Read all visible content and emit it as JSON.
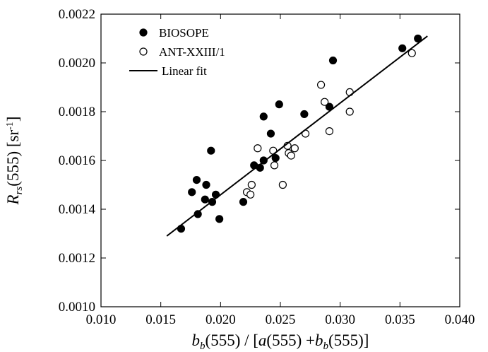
{
  "chart_data": {
    "type": "scatter",
    "xlabel": [
      "b",
      "b",
      "(555) / [",
      "a",
      "(555) +",
      "b",
      "b",
      "(555)]"
    ],
    "ylabel": [
      "R",
      "rs",
      "(555)  [sr",
      "-1",
      "]"
    ],
    "xlim": [
      0.01,
      0.04
    ],
    "ylim": [
      0.001,
      0.0022
    ],
    "xticks": [
      {
        "value": 0.01,
        "label": "0.010"
      },
      {
        "value": 0.015,
        "label": "0.015"
      },
      {
        "value": 0.02,
        "label": "0.020"
      },
      {
        "value": 0.025,
        "label": "0.025"
      },
      {
        "value": 0.03,
        "label": "0.030"
      },
      {
        "value": 0.035,
        "label": "0.035"
      },
      {
        "value": 0.04,
        "label": "0.040"
      }
    ],
    "yticks": [
      {
        "value": 0.001,
        "label": "0.0010"
      },
      {
        "value": 0.0012,
        "label": "0.0012"
      },
      {
        "value": 0.0014,
        "label": "0.0014"
      },
      {
        "value": 0.0016,
        "label": "0.0016"
      },
      {
        "value": 0.0018,
        "label": "0.0018"
      },
      {
        "value": 0.002,
        "label": "0.0020"
      },
      {
        "value": 0.0022,
        "label": "0.0022"
      }
    ],
    "legend": "top-left",
    "series": [
      {
        "name": "BIOSOPE",
        "color": "#000000",
        "style": "filled",
        "x": [
          0.0167,
          0.0176,
          0.018,
          0.0181,
          0.0188,
          0.0187,
          0.0192,
          0.0193,
          0.0196,
          0.0199,
          0.0219,
          0.0228,
          0.0233,
          0.0236,
          0.0236,
          0.0242,
          0.0246,
          0.0249,
          0.027,
          0.0291,
          0.0294,
          0.0352,
          0.0365
        ],
        "values": [
          0.00132,
          0.00147,
          0.00152,
          0.00138,
          0.0015,
          0.00144,
          0.00164,
          0.00143,
          0.00146,
          0.00136,
          0.00143,
          0.00158,
          0.00157,
          0.0016,
          0.00178,
          0.00171,
          0.00161,
          0.00183,
          0.00179,
          0.00182,
          0.00201,
          0.00206,
          0.0021
        ]
      },
      {
        "name": "ANT-XXIII/1",
        "color": "#000000",
        "style": "open",
        "x": [
          0.0231,
          0.0222,
          0.0225,
          0.0226,
          0.0244,
          0.0245,
          0.0252,
          0.0256,
          0.0257,
          0.0259,
          0.0262,
          0.0271,
          0.0284,
          0.0287,
          0.0291,
          0.0308,
          0.0308,
          0.036
        ],
        "values": [
          0.00165,
          0.00147,
          0.00146,
          0.0015,
          0.00164,
          0.00158,
          0.0015,
          0.00166,
          0.00163,
          0.00162,
          0.00165,
          0.00171,
          0.00191,
          0.00184,
          0.00172,
          0.00188,
          0.0018,
          0.00204
        ]
      },
      {
        "name": "Linear fit",
        "color": "#000000",
        "style": "line",
        "x": [
          0.0155,
          0.0373
        ],
        "values": [
          0.00129,
          0.00211
        ]
      }
    ]
  }
}
